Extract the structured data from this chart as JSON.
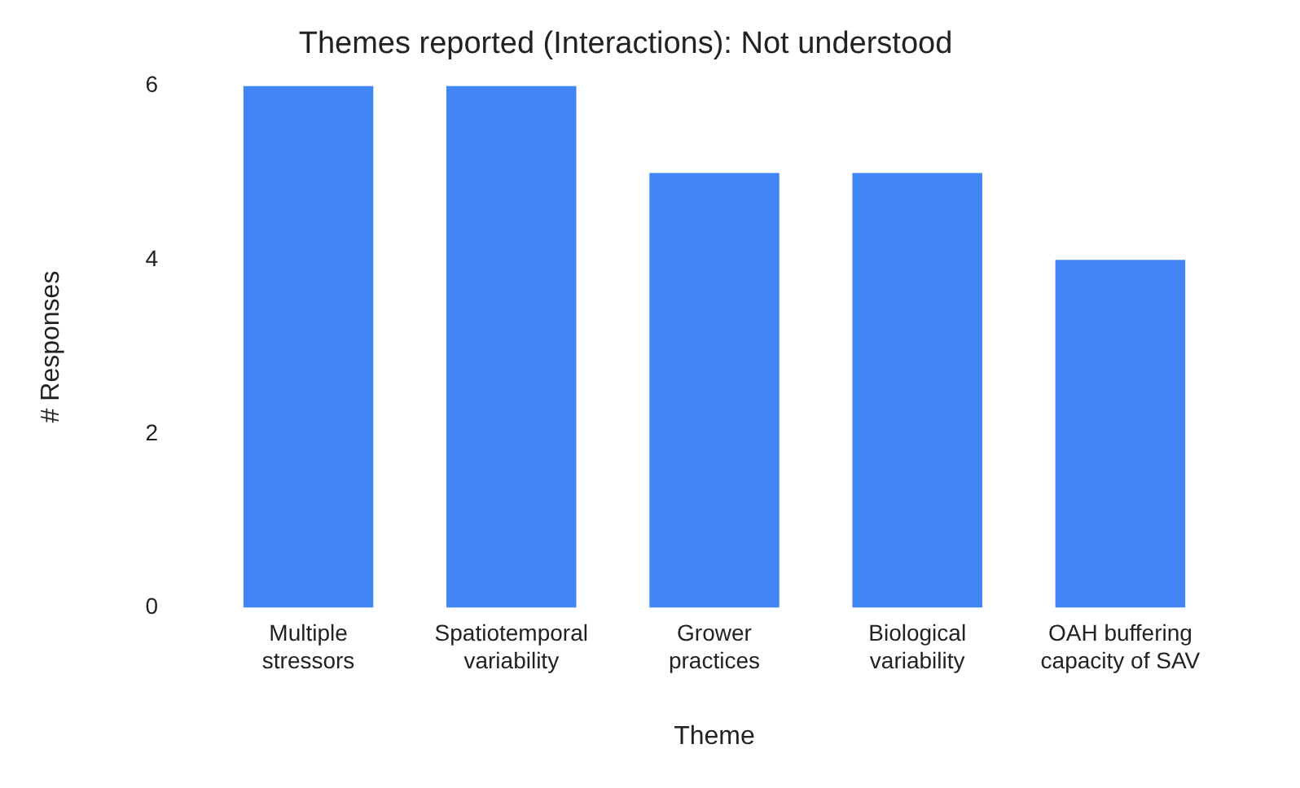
{
  "chart_data": {
    "type": "bar",
    "title": "Themes reported (Interactions): Not understood",
    "xlabel": "Theme",
    "ylabel": "# Responses",
    "categories": [
      "Multiple stressors",
      "Spatiotemporal variability",
      "Grower practices",
      "Biological variability",
      "OAH buffering capacity of SAV"
    ],
    "values": [
      6,
      6,
      5,
      5,
      4
    ],
    "color": "#4285f4",
    "ylim": [
      0,
      6
    ],
    "yticks": [
      0,
      2,
      4,
      6
    ],
    "grid": false,
    "legend": false
  }
}
